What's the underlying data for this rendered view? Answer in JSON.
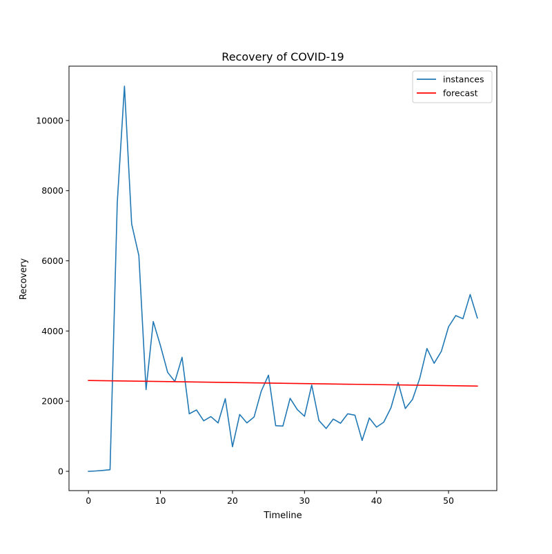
{
  "chart_data": {
    "type": "line",
    "title": "Recovery of COVID-19",
    "xlabel": "Timeline",
    "ylabel": "Recovery",
    "xlim": [
      -2.7,
      56.7
    ],
    "ylim": [
      -550,
      11550
    ],
    "xticks": [
      0,
      10,
      20,
      30,
      40,
      50
    ],
    "yticks": [
      0,
      2000,
      4000,
      6000,
      8000,
      10000
    ],
    "grid": false,
    "legend_position": "top-right",
    "series": [
      {
        "name": "instances",
        "color": "#1f77b4",
        "x": [
          0,
          1,
          2,
          3,
          4,
          5,
          6,
          7,
          8,
          9,
          10,
          11,
          12,
          13,
          14,
          15,
          16,
          17,
          18,
          19,
          20,
          21,
          22,
          23,
          24,
          25,
          26,
          27,
          28,
          29,
          30,
          31,
          32,
          33,
          34,
          35,
          36,
          37,
          38,
          39,
          40,
          41,
          42,
          43,
          44,
          45,
          46,
          47,
          48,
          49,
          50,
          51,
          52,
          53,
          54
        ],
        "values": [
          0,
          10,
          25,
          45,
          7650,
          10980,
          7050,
          6150,
          2330,
          4270,
          3580,
          2820,
          2560,
          3250,
          1640,
          1750,
          1440,
          1560,
          1380,
          2070,
          700,
          1620,
          1380,
          1550,
          2290,
          2740,
          1300,
          1290,
          2080,
          1760,
          1570,
          2460,
          1450,
          1220,
          1490,
          1370,
          1640,
          1600,
          880,
          1520,
          1260,
          1400,
          1810,
          2530,
          1790,
          2050,
          2650,
          3500,
          3080,
          3420,
          4120,
          4440,
          4350,
          5040,
          4370
        ]
      },
      {
        "name": "forecast",
        "color": "#ff0000",
        "x": [
          0,
          54
        ],
        "values": [
          2590,
          2430
        ]
      }
    ]
  }
}
